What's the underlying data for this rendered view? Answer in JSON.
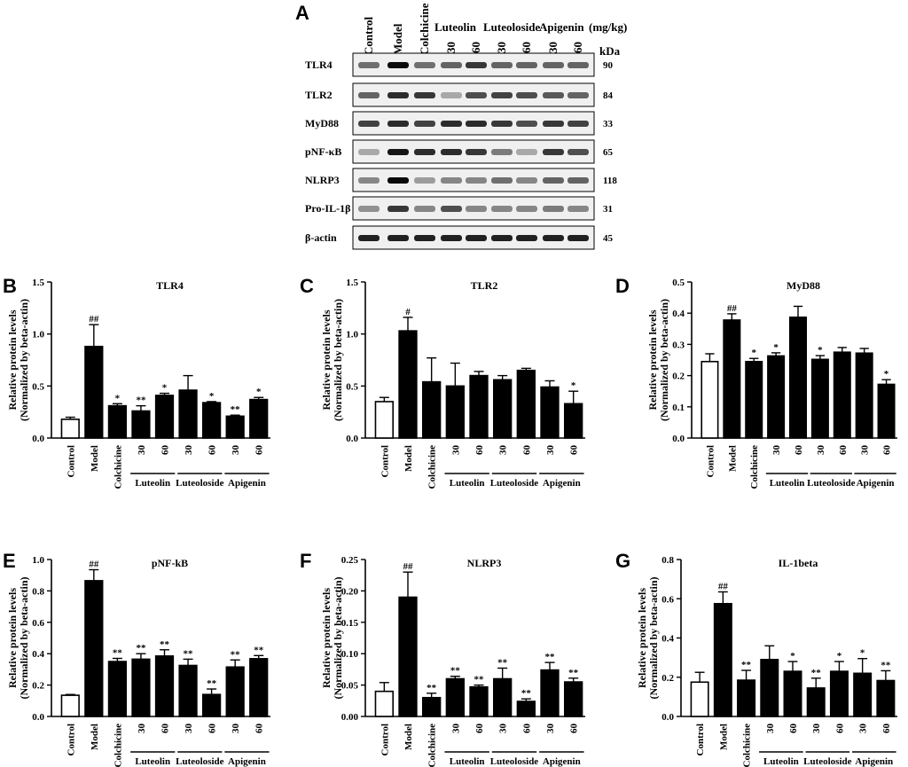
{
  "blot": {
    "panel_letter": "A",
    "lane_headers": [
      "Control",
      "Model",
      "Colchicine",
      "30",
      "60",
      "30",
      "60",
      "30",
      "60"
    ],
    "drug_headers": [
      "Luteolin",
      "Luteoloside",
      "Apigenin"
    ],
    "unit_label": "(mg/kg)",
    "kda_label": "kDa",
    "bands": [
      {
        "name": "TLR4",
        "kda": "90",
        "intensity": [
          0.55,
          1.0,
          0.55,
          0.6,
          0.8,
          0.6,
          0.6,
          0.6,
          0.6
        ]
      },
      {
        "name": "TLR2",
        "kda": "84",
        "intensity": [
          0.6,
          0.85,
          0.8,
          0.3,
          0.7,
          0.75,
          0.7,
          0.65,
          0.6
        ]
      },
      {
        "name": "MyD88",
        "kda": "33",
        "intensity": [
          0.75,
          0.85,
          0.75,
          0.85,
          0.85,
          0.8,
          0.7,
          0.8,
          0.75
        ]
      },
      {
        "name": "pNF-κB",
        "kda": "65",
        "intensity": [
          0.3,
          0.95,
          0.85,
          0.85,
          0.8,
          0.5,
          0.3,
          0.8,
          0.7
        ]
      },
      {
        "name": "NLRP3",
        "kda": "118",
        "intensity": [
          0.45,
          1.0,
          0.35,
          0.45,
          0.45,
          0.55,
          0.45,
          0.6,
          0.6
        ]
      },
      {
        "name": "Pro-IL-1β",
        "kda": "31",
        "intensity": [
          0.4,
          0.8,
          0.45,
          0.7,
          0.45,
          0.45,
          0.45,
          0.5,
          0.45
        ]
      },
      {
        "name": "β-actin",
        "kda": "45",
        "intensity": [
          0.9,
          0.9,
          0.9,
          0.9,
          0.9,
          0.9,
          0.9,
          0.9,
          0.9
        ]
      }
    ]
  },
  "chart_data": [
    {
      "panel": "B",
      "type": "bar",
      "title": "TLR4",
      "ylabel": [
        "Relative protein levels",
        "(Normalized by beta-actin)"
      ],
      "ylim": [
        0,
        1.5
      ],
      "yticks": [
        "0.0",
        "0.5",
        "1.0",
        "1.5"
      ],
      "categories": [
        "Control",
        "Model",
        "Colchicine",
        "30",
        "60",
        "30",
        "60",
        "30",
        "60"
      ],
      "groups": [
        "Luteolin",
        "Luteoloside",
        "Apigenin"
      ],
      "values": [
        0.18,
        0.88,
        0.31,
        0.26,
        0.41,
        0.46,
        0.34,
        0.21,
        0.37
      ],
      "errors": [
        0.02,
        0.21,
        0.02,
        0.05,
        0.02,
        0.14,
        0.01,
        0.01,
        0.02
      ],
      "sig": [
        "",
        "##",
        "*",
        "**",
        "*",
        "",
        "*",
        "**",
        "*"
      ]
    },
    {
      "panel": "C",
      "type": "bar",
      "title": "TLR2",
      "ylabel": [
        "Relative protein levels",
        "(Normalized by beta-actin)"
      ],
      "ylim": [
        0,
        1.5
      ],
      "yticks": [
        "0.0",
        "0.5",
        "1.0",
        "1.5"
      ],
      "categories": [
        "Control",
        "Model",
        "Colchicine",
        "30",
        "60",
        "30",
        "60",
        "30",
        "60"
      ],
      "groups": [
        "Luteolin",
        "Luteoloside",
        "Apigenin"
      ],
      "values": [
        0.35,
        1.03,
        0.54,
        0.5,
        0.6,
        0.56,
        0.65,
        0.49,
        0.33
      ],
      "errors": [
        0.04,
        0.13,
        0.23,
        0.22,
        0.04,
        0.04,
        0.02,
        0.06,
        0.12
      ],
      "sig": [
        "",
        "#",
        "",
        "",
        "",
        "",
        "",
        "",
        "*"
      ]
    },
    {
      "panel": "D",
      "type": "bar",
      "title": "MyD88",
      "ylabel": [
        "Relative protein levels",
        "(Normalized by beta-actin)"
      ],
      "ylim": [
        0,
        0.5
      ],
      "yticks": [
        "0.0",
        "0.1",
        "0.2",
        "0.3",
        "0.4",
        "0.5"
      ],
      "categories": [
        "Control",
        "Model",
        "Colchicine",
        "30",
        "60",
        "30",
        "60",
        "30",
        "60"
      ],
      "groups": [
        "Luteolin",
        "Luteoloside",
        "Apigenin"
      ],
      "values": [
        0.245,
        0.378,
        0.245,
        0.263,
        0.387,
        0.252,
        0.275,
        0.272,
        0.172
      ],
      "errors": [
        0.025,
        0.02,
        0.01,
        0.01,
        0.035,
        0.012,
        0.015,
        0.015,
        0.015
      ],
      "sig": [
        "",
        "##",
        "*",
        "*",
        "",
        "*",
        "",
        "",
        "*"
      ]
    },
    {
      "panel": "E",
      "type": "bar",
      "title": "pNF-kB",
      "ylabel": [
        "Relative protein levels",
        "(Normalized by beta-actin)"
      ],
      "ylim": [
        0,
        1.0
      ],
      "yticks": [
        "0.0",
        "0.2",
        "0.4",
        "0.6",
        "0.8",
        "1.0"
      ],
      "categories": [
        "Control",
        "Model",
        "Colchicine",
        "30",
        "60",
        "30",
        "60",
        "30",
        "60"
      ],
      "groups": [
        "Luteolin",
        "Luteoloside",
        "Apigenin"
      ],
      "values": [
        0.135,
        0.865,
        0.35,
        0.365,
        0.385,
        0.325,
        0.14,
        0.315,
        0.368
      ],
      "errors": [
        0.005,
        0.07,
        0.02,
        0.035,
        0.04,
        0.04,
        0.035,
        0.045,
        0.02
      ],
      "sig": [
        "",
        "##",
        "**",
        "**",
        "**",
        "**",
        "**",
        "**",
        "**"
      ]
    },
    {
      "panel": "F",
      "type": "bar",
      "title": "NLRP3",
      "ylabel": [
        "Relative protein levels",
        "(Normalized by beta-actin)"
      ],
      "ylim": [
        0,
        0.25
      ],
      "yticks": [
        "0.00",
        "0.05",
        "0.10",
        "0.15",
        "0.20",
        "0.25"
      ],
      "categories": [
        "Control",
        "Model",
        "Colchicine",
        "30",
        "60",
        "30",
        "60",
        "30",
        "60"
      ],
      "groups": [
        "Luteolin",
        "Luteoloside",
        "Apigenin"
      ],
      "values": [
        0.04,
        0.19,
        0.03,
        0.06,
        0.047,
        0.06,
        0.024,
        0.074,
        0.055
      ],
      "errors": [
        0.014,
        0.04,
        0.007,
        0.004,
        0.003,
        0.017,
        0.004,
        0.012,
        0.006
      ],
      "sig": [
        "",
        "##",
        "**",
        "**",
        "**",
        "**",
        "**",
        "**",
        "**"
      ]
    },
    {
      "panel": "G",
      "type": "bar",
      "title": "IL-1beta",
      "ylabel": [
        "Relative protein levels",
        "(Normalized by beta-actin)"
      ],
      "ylim": [
        0,
        0.8
      ],
      "yticks": [
        "0.0",
        "0.2",
        "0.4",
        "0.6",
        "0.8"
      ],
      "categories": [
        "Control",
        "Model",
        "Colchicine",
        "30",
        "60",
        "30",
        "60",
        "30",
        "60"
      ],
      "groups": [
        "Luteolin",
        "Luteoloside",
        "Apigenin"
      ],
      "values": [
        0.175,
        0.575,
        0.185,
        0.29,
        0.23,
        0.145,
        0.23,
        0.22,
        0.183
      ],
      "errors": [
        0.05,
        0.06,
        0.05,
        0.07,
        0.05,
        0.05,
        0.05,
        0.075,
        0.05
      ],
      "sig": [
        "",
        "##",
        "**",
        "",
        "*",
        "**",
        "*",
        "*",
        "**"
      ]
    }
  ]
}
